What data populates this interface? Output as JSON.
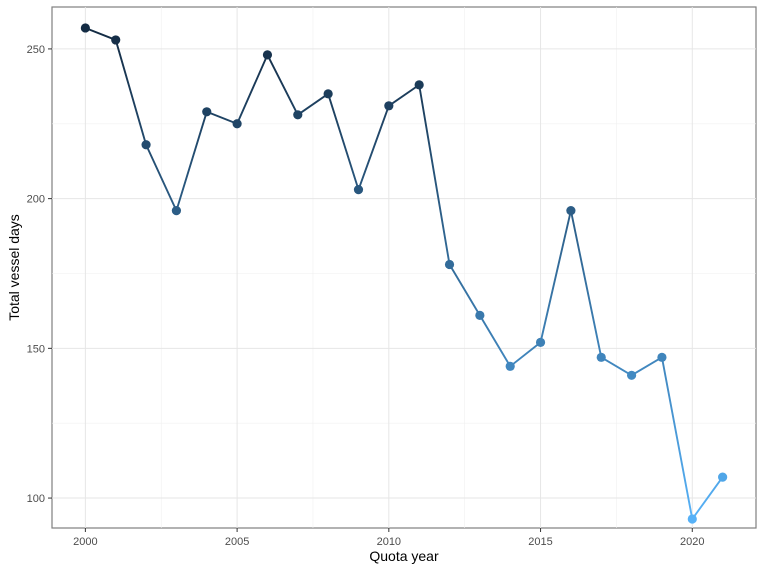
{
  "chart_data": {
    "type": "line",
    "title": "",
    "xlabel": "Quota year",
    "ylabel": "Total vessel days",
    "xlim": [
      1998.9,
      2022.1
    ],
    "ylim": [
      90,
      264
    ],
    "x_ticks": [
      2000,
      2005,
      2010,
      2015,
      2020
    ],
    "x_tick_labels": [
      "2000",
      "2005",
      "2010",
      "2015",
      "2020"
    ],
    "y_ticks": [
      100,
      150,
      200,
      250
    ],
    "y_tick_labels": [
      "100",
      "150",
      "200",
      "250"
    ],
    "grid": true,
    "legend": "none",
    "color_scale": {
      "low": "#56b1f7",
      "high": "#132b43",
      "low_value": 93,
      "high_value": 257
    },
    "series": [
      {
        "x": [
          2000,
          2001,
          2002,
          2003,
          2004,
          2005,
          2006,
          2007,
          2008,
          2009,
          2010,
          2011,
          2012,
          2013,
          2014,
          2015,
          2016,
          2017,
          2018,
          2019,
          2020,
          2021
        ],
        "values": [
          257,
          253,
          218,
          196,
          229,
          225,
          248,
          228,
          235,
          203,
          231,
          238,
          178,
          161,
          144,
          152,
          196,
          147,
          141,
          147,
          93,
          107
        ]
      }
    ]
  }
}
